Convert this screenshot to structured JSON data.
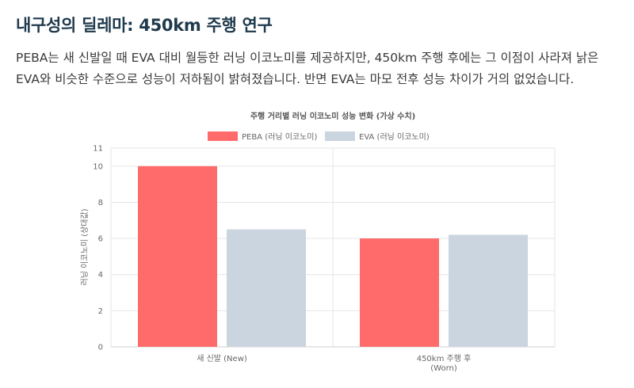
{
  "page": {
    "title": "내구성의 딜레마: 450km 주행 연구",
    "intro": "PEBA는 새 신발일 때 EVA 대비 월등한 러닝 이코노미를 제공하지만, 450km 주행 후에는 그 이점이 사라져 낡은 EVA와 비슷한 수준으로 성능이 저하됨이 밝혀졌습니다. 반면 EVA는 마모 전후 성능 차이가 거의 없었습니다."
  },
  "chart_data": {
    "type": "bar",
    "title": "주행 거리별 러닝 이코노미 성능 변화 (가상 수치)",
    "categories": [
      [
        "새 신발 (New)"
      ],
      [
        "450km 주행 후",
        "(Worn)"
      ]
    ],
    "series": [
      {
        "name": "PEBA (러닝 이코노미)",
        "values": [
          10,
          6
        ],
        "color": "#ff6b6b"
      },
      {
        "name": "EVA (러닝 이코노미)",
        "values": [
          6.5,
          6.2
        ],
        "color": "#cbd5e0"
      }
    ],
    "xlabel": "",
    "ylabel": "러닝 이코노미 (상대값)",
    "ylim": [
      0,
      11
    ],
    "yticks": [
      0,
      2,
      4,
      6,
      8,
      10,
      11
    ],
    "grid": true,
    "legend": "top"
  }
}
